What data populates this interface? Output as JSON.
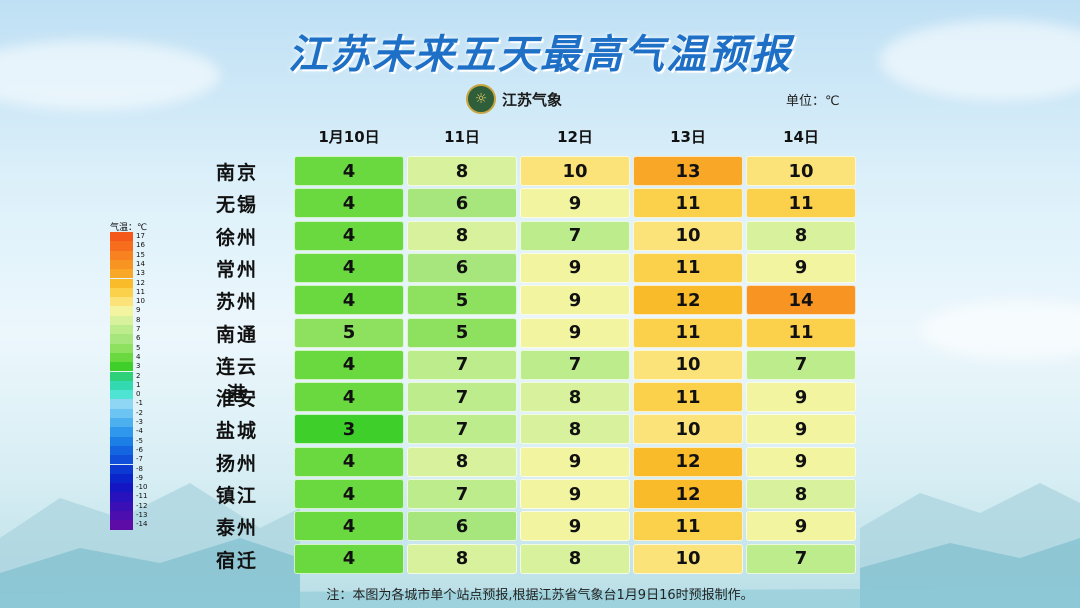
{
  "title": "江苏未来五天最高气温预报",
  "logo": {
    "text": "江苏气象",
    "icon": "meteorology-emblem-icon"
  },
  "unit": "单位：℃",
  "note": "注：本图为各城市单个站点预报,根据江苏省气象台1月9日16时预报制作。",
  "legend": {
    "title": "气温：℃",
    "items": [
      {
        "label": "17",
        "color": "#f4581a"
      },
      {
        "label": "16",
        "color": "#f66e1d"
      },
      {
        "label": "15",
        "color": "#f7821f"
      },
      {
        "label": "14",
        "color": "#f89522"
      },
      {
        "label": "13",
        "color": "#f9a726"
      },
      {
        "label": "12",
        "color": "#fabb2b"
      },
      {
        "label": "11",
        "color": "#fbd04a"
      },
      {
        "label": "10",
        "color": "#fbe37a"
      },
      {
        "label": "9",
        "color": "#f2f4a0"
      },
      {
        "label": "8",
        "color": "#d8f19c"
      },
      {
        "label": "7",
        "color": "#bcec8c"
      },
      {
        "label": "6",
        "color": "#a6e67c"
      },
      {
        "label": "5",
        "color": "#8ee05f"
      },
      {
        "label": "4",
        "color": "#6ad93f"
      },
      {
        "label": "3",
        "color": "#3fcf2a"
      },
      {
        "label": "2",
        "color": "#2fd07a"
      },
      {
        "label": "1",
        "color": "#33d9b0"
      },
      {
        "label": "0",
        "color": "#4fe3d3"
      },
      {
        "label": "-1",
        "color": "#8fd6f5"
      },
      {
        "label": "-2",
        "color": "#6cc4f2"
      },
      {
        "label": "-3",
        "color": "#4cb0ef"
      },
      {
        "label": "-4",
        "color": "#2f98ec"
      },
      {
        "label": "-5",
        "color": "#1c7fe6"
      },
      {
        "label": "-6",
        "color": "#1366e0"
      },
      {
        "label": "-7",
        "color": "#0f4fd9"
      },
      {
        "label": "-8",
        "color": "#0c39d2"
      },
      {
        "label": "-9",
        "color": "#0a26cb"
      },
      {
        "label": "-10",
        "color": "#1416c4"
      },
      {
        "label": "-11",
        "color": "#2812bd"
      },
      {
        "label": "-12",
        "color": "#3a10b6"
      },
      {
        "label": "-13",
        "color": "#4c0eaf"
      },
      {
        "label": "-14",
        "color": "#5e0ca8"
      }
    ]
  },
  "chart_data": {
    "type": "table",
    "title": "江苏未来五天最高气温预报",
    "unit": "℃",
    "columns": [
      "1月10日",
      "11日",
      "12日",
      "13日",
      "14日"
    ],
    "rows": [
      {
        "city": "南京",
        "values": [
          4,
          8,
          10,
          13,
          10
        ]
      },
      {
        "city": "无锡",
        "values": [
          4,
          6,
          9,
          11,
          11
        ]
      },
      {
        "city": "徐州",
        "values": [
          4,
          8,
          7,
          10,
          8
        ]
      },
      {
        "city": "常州",
        "values": [
          4,
          6,
          9,
          11,
          9
        ]
      },
      {
        "city": "苏州",
        "values": [
          4,
          5,
          9,
          12,
          14
        ]
      },
      {
        "city": "南通",
        "values": [
          5,
          5,
          9,
          11,
          11
        ]
      },
      {
        "city": "连云港",
        "values": [
          4,
          7,
          7,
          10,
          7
        ]
      },
      {
        "city": "淮安",
        "values": [
          4,
          7,
          8,
          11,
          9
        ]
      },
      {
        "city": "盐城",
        "values": [
          3,
          7,
          8,
          10,
          9
        ]
      },
      {
        "city": "扬州",
        "values": [
          4,
          8,
          9,
          12,
          9
        ]
      },
      {
        "city": "镇江",
        "values": [
          4,
          7,
          9,
          12,
          8
        ]
      },
      {
        "city": "泰州",
        "values": [
          4,
          6,
          9,
          11,
          9
        ]
      },
      {
        "city": "宿迁",
        "values": [
          4,
          8,
          8,
          10,
          7
        ]
      }
    ]
  }
}
